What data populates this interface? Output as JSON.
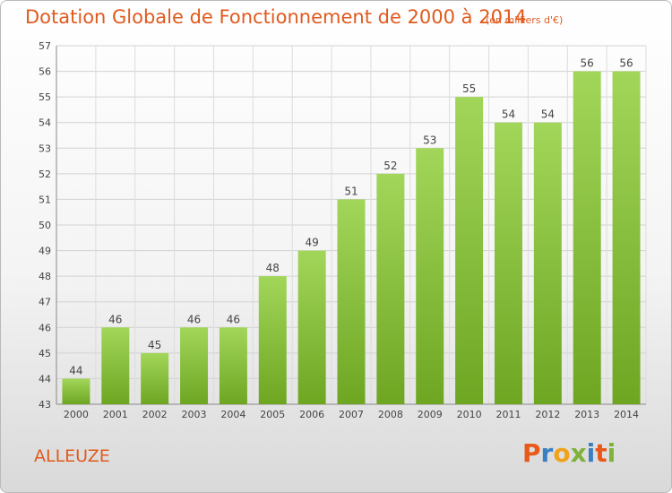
{
  "header": {
    "title": "Dotation Globale de Fonctionnement de 2000 à 2014",
    "subtitle": "(en milliers d'€)"
  },
  "footer": {
    "commune": "ALLEUZE",
    "logo": "Proxiti"
  },
  "colors": {
    "title": "#e05a1e",
    "bar_light": "#a2d65a",
    "bar_dark": "#6ea622",
    "logo_letters": [
      "#e8591a",
      "#3a7fc1",
      "#f0a21a",
      "#7fb23a",
      "#3a7fc1",
      "#e8591a",
      "#7fb23a"
    ]
  },
  "chart_data": {
    "type": "bar",
    "title": "Dotation Globale de Fonctionnement de 2000 à 2014",
    "subtitle": "(en milliers d'€)",
    "categories": [
      "2000",
      "2001",
      "2002",
      "2003",
      "2004",
      "2005",
      "2006",
      "2007",
      "2008",
      "2009",
      "2010",
      "2011",
      "2012",
      "2013",
      "2014"
    ],
    "values": [
      44,
      46,
      45,
      46,
      46,
      48,
      49,
      51,
      52,
      53,
      55,
      54,
      54,
      56,
      56
    ],
    "ylim": [
      43,
      57
    ],
    "yticks": [
      43,
      44,
      45,
      46,
      47,
      48,
      49,
      50,
      51,
      52,
      53,
      54,
      55,
      56,
      57
    ],
    "grid": true,
    "data_labels": true
  }
}
